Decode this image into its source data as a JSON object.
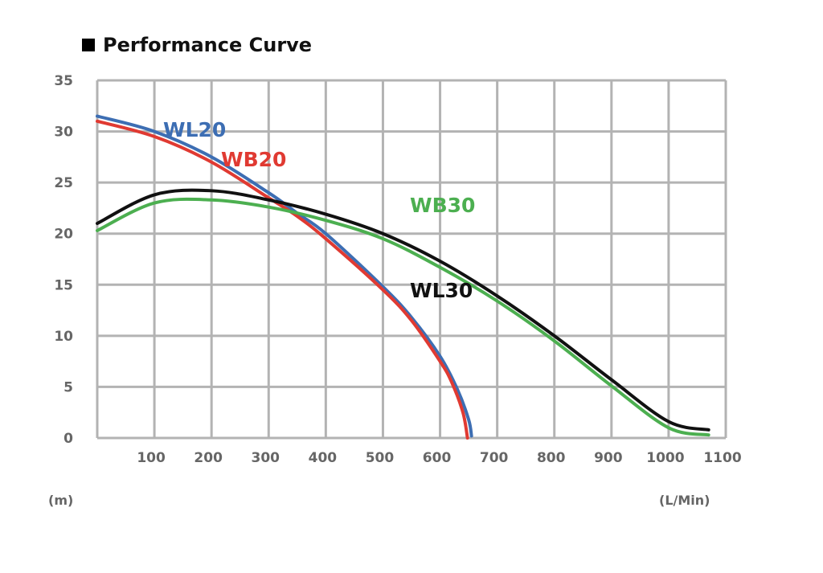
{
  "title": "Performance Curve",
  "colors": {
    "grid": "#b3b3b3",
    "tick_text": "#666666"
  },
  "chart_data": {
    "type": "line",
    "title": "Performance Curve",
    "ylabel": "(m)",
    "xlabel": "(L/Min)",
    "x_ticks": [
      "100",
      "200",
      "300",
      "400",
      "500",
      "600",
      "700",
      "800",
      "900",
      "1000",
      "1100"
    ],
    "y_ticks": [
      "0",
      "5",
      "10",
      "15",
      "20",
      "25",
      "30",
      "35"
    ],
    "xlim": [
      0,
      1100
    ],
    "ylim": [
      0,
      35
    ],
    "grid": true,
    "series": [
      {
        "name": "WL20",
        "color": "#3d6eb3",
        "x": [
          0,
          100,
          200,
          300,
          350,
          400,
          500,
          550,
          600,
          630,
          650,
          655
        ],
        "y": [
          31.5,
          30.0,
          27.5,
          24.0,
          22.0,
          20.0,
          14.8,
          11.8,
          8.0,
          4.8,
          1.8,
          0.2
        ]
      },
      {
        "name": "WB20",
        "color": "#e03a32",
        "x": [
          0,
          100,
          200,
          300,
          350,
          400,
          500,
          550,
          600,
          620,
          640,
          648
        ],
        "y": [
          31.0,
          29.5,
          27.0,
          23.5,
          21.7,
          19.5,
          14.5,
          11.5,
          7.5,
          5.5,
          2.5,
          0.0
        ]
      },
      {
        "name": "WL30",
        "color": "#111111",
        "x": [
          0,
          100,
          200,
          300,
          400,
          500,
          600,
          700,
          800,
          900,
          1000,
          1070
        ],
        "y": [
          21.0,
          23.8,
          24.2,
          23.3,
          21.9,
          20.0,
          17.3,
          13.9,
          10.0,
          5.7,
          1.6,
          0.8
        ]
      },
      {
        "name": "WB30",
        "color": "#4caf50",
        "x": [
          0,
          100,
          200,
          300,
          400,
          500,
          600,
          700,
          800,
          900,
          1000,
          1070
        ],
        "y": [
          20.3,
          23.0,
          23.3,
          22.6,
          21.3,
          19.5,
          16.7,
          13.4,
          9.5,
          5.1,
          1.0,
          0.3
        ]
      }
    ]
  }
}
